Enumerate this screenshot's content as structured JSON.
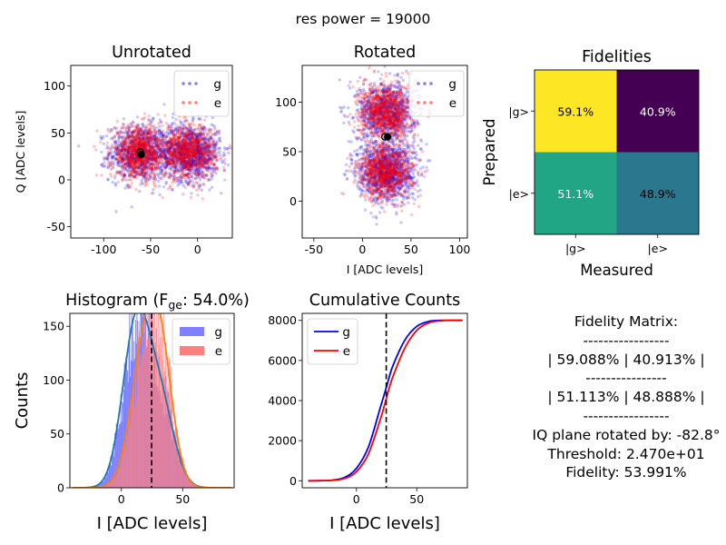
{
  "suptitle": "res power = 19000",
  "colors": {
    "g": "#0000ff",
    "e": "#ff0000",
    "g_fit": "#1f77b4",
    "e_fit": "#ff7f0e",
    "hist_g": "#7f7fff",
    "hist_e": "#ff7f7f",
    "hist_overlap": "#bf3f7f"
  },
  "chart_data": [
    {
      "type": "scatter",
      "title": "Unrotated",
      "xlabel": "",
      "ylabel": "Q [ADC levels]",
      "xlim": [
        -135,
        37
      ],
      "ylim": [
        -62,
        122
      ],
      "xticks": [
        -100,
        -50,
        0
      ],
      "yticks": [
        -50,
        0,
        50,
        100
      ],
      "legend": "top-right",
      "series": [
        {
          "name": "g",
          "clusters": [
            {
              "center": [
                -62,
                29
              ],
              "spread": [
                16,
                15
              ],
              "count": 900
            },
            {
              "center": [
                -8,
                29
              ],
              "spread": [
                16,
                15
              ],
              "count": 1100
            }
          ]
        },
        {
          "name": "e",
          "clusters": [
            {
              "center": [
                -62,
                29
              ],
              "spread": [
                15,
                14
              ],
              "count": 1000
            },
            {
              "center": [
                -10,
                29
              ],
              "spread": [
                15,
                14
              ],
              "count": 1000
            }
          ]
        }
      ],
      "centers": [
        [
          -61,
          30
        ],
        [
          -60,
          27
        ]
      ]
    },
    {
      "type": "scatter",
      "title": "Rotated",
      "xlabel": "I [ADC levels]",
      "ylabel": "",
      "xlim": [
        -62,
        108
      ],
      "ylim": [
        -37,
        137
      ],
      "xticks": [
        -50,
        0,
        50,
        100
      ],
      "yticks": [
        0,
        50,
        100
      ],
      "legend": "top-right",
      "series": [
        {
          "name": "g",
          "clusters": [
            {
              "center": [
                25,
                90
              ],
              "spread": [
                15,
                15
              ],
              "count": 900
            },
            {
              "center": [
                25,
                30
              ],
              "spread": [
                15,
                15
              ],
              "count": 1100
            }
          ]
        },
        {
          "name": "e",
          "clusters": [
            {
              "center": [
                24,
                90
              ],
              "spread": [
                14,
                14
              ],
              "count": 1000
            },
            {
              "center": [
                24,
                30
              ],
              "spread": [
                14,
                14
              ],
              "count": 1000
            }
          ]
        }
      ],
      "centers": [
        [
          23,
          65
        ],
        [
          26,
          65
        ]
      ]
    },
    {
      "type": "heatmap",
      "title": "Fidelities",
      "xlabel": "Measured",
      "ylabel": "Prepared",
      "xticklabels": [
        "|g>",
        "|e>"
      ],
      "yticklabels": [
        "|g>",
        "|e>"
      ],
      "values": [
        [
          59.1,
          40.9
        ],
        [
          51.1,
          48.9
        ]
      ],
      "cell_labels": [
        [
          "59.1%",
          "40.9%"
        ],
        [
          "51.1%",
          "48.9%"
        ]
      ],
      "cell_colors": [
        [
          "#fde725",
          "#440154"
        ],
        [
          "#21a585",
          "#2a788e"
        ]
      ],
      "cell_text_colors": [
        [
          "#000000",
          "#ffffff"
        ],
        [
          "#ffffff",
          "#000000"
        ]
      ]
    },
    {
      "type": "bar",
      "title_prefix": "Histogram (",
      "title_symbol": "F",
      "title_subscript": "ge",
      "title_suffix": ": 54.0%)",
      "xlabel": "I [ADC levels]",
      "ylabel": "Counts",
      "xlim": [
        -42,
        92
      ],
      "ylim": [
        0,
        162
      ],
      "xticks": [
        0,
        50
      ],
      "yticks": [
        0,
        50,
        100,
        150
      ],
      "threshold": 24.7,
      "legend": "top-right",
      "series": [
        {
          "name": "g",
          "peaks": [
            {
              "mu": 12,
              "sigma": 11,
              "amp": 150
            },
            {
              "mu": 32,
              "sigma": 11,
              "amp": 75
            }
          ]
        },
        {
          "name": "e",
          "peaks": [
            {
              "mu": 18,
              "sigma": 11,
              "amp": 112
            },
            {
              "mu": 32,
              "sigma": 10,
              "amp": 110
            }
          ]
        }
      ]
    },
    {
      "type": "line",
      "title": "Cumulative Counts",
      "xlabel": "I [ADC levels]",
      "ylabel": "",
      "xlim": [
        -45,
        92
      ],
      "ylim": [
        -350,
        8350
      ],
      "xticks": [
        0,
        50
      ],
      "yticks": [
        0,
        2000,
        4000,
        6000,
        8000
      ],
      "threshold": 24.7,
      "legend": "top-left",
      "series": [
        {
          "name": "g",
          "x": [
            -40,
            -30,
            -20,
            -10,
            0,
            10,
            20,
            25,
            30,
            40,
            50,
            60,
            70,
            80,
            88
          ],
          "y": [
            0,
            5,
            30,
            160,
            620,
            1700,
            3700,
            4700,
            5700,
            7000,
            7700,
            7950,
            8000,
            8000,
            8000
          ]
        },
        {
          "name": "e",
          "x": [
            -40,
            -30,
            -20,
            -10,
            0,
            10,
            20,
            25,
            30,
            40,
            50,
            60,
            70,
            80,
            88
          ],
          "y": [
            0,
            3,
            20,
            110,
            450,
            1350,
            3100,
            4150,
            5150,
            6600,
            7500,
            7880,
            7980,
            8000,
            8000
          ]
        }
      ]
    }
  ],
  "summary": {
    "line1": "Fidelity Matrix:",
    "line2": "-----------------",
    "line3": "| 59.088% | 40.913% |",
    "line4": "----------------",
    "line5": "| 51.113% | 48.888% |",
    "line6": "-----------------",
    "line7": "IQ plane rotated by: -82.8°",
    "line8": "Threshold: 2.470e+01",
    "line9": "Fidelity: 53.991%"
  }
}
